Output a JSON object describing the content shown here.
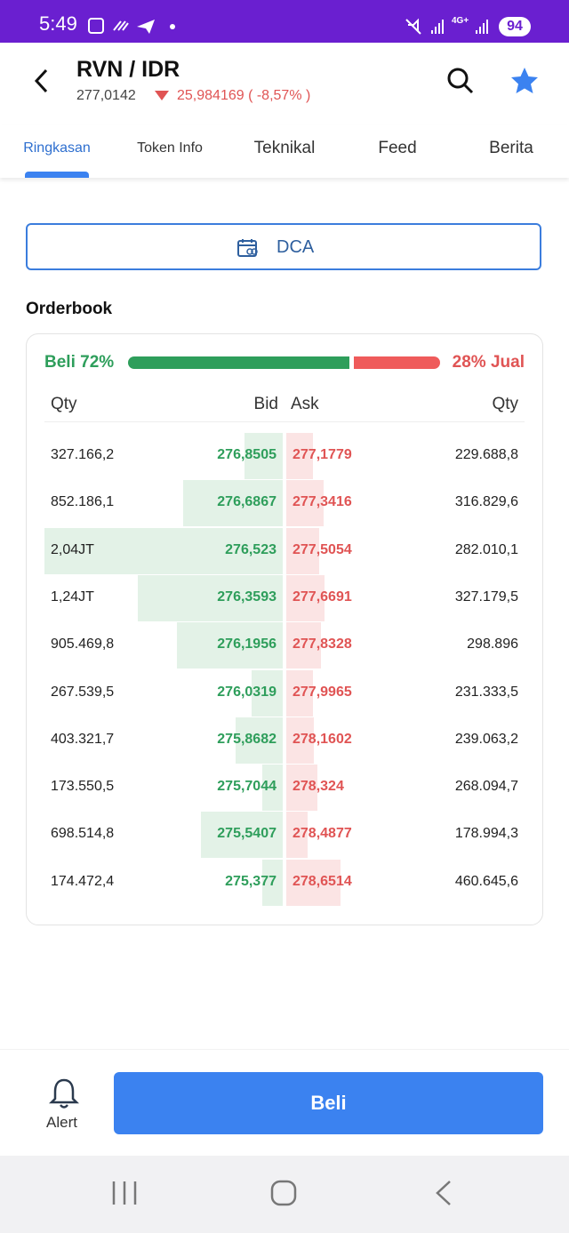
{
  "status_bar": {
    "time": "5:49",
    "network": "4G+",
    "battery": "94"
  },
  "header": {
    "pair": "RVN / IDR",
    "price": "277,0142",
    "change": "25,984169 ( -8,57% )"
  },
  "tabs": [
    "Ringkasan",
    "Token Info",
    "Teknikal",
    "Feed",
    "Berita"
  ],
  "dca_button": "DCA",
  "orderbook": {
    "title": "Orderbook",
    "buy_label": "Beli 72%",
    "buy_percent": 72,
    "sell_label": "28% Jual",
    "sell_percent": 28,
    "columns": [
      "Qty",
      "Bid",
      "Ask",
      "Qty"
    ],
    "rows": [
      {
        "bid_qty": "327.166,2",
        "bid": "276,8505",
        "ask": "277,1779",
        "ask_qty": "229.688,8"
      },
      {
        "bid_qty": "852.186,1",
        "bid": "276,6867",
        "ask": "277,3416",
        "ask_qty": "316.829,6"
      },
      {
        "bid_qty": "2,04JT",
        "bid": "276,523",
        "ask": "277,5054",
        "ask_qty": "282.010,1"
      },
      {
        "bid_qty": "1,24JT",
        "bid": "276,3593",
        "ask": "277,6691",
        "ask_qty": "327.179,5"
      },
      {
        "bid_qty": "905.469,8",
        "bid": "276,1956",
        "ask": "277,8328",
        "ask_qty": "298.896"
      },
      {
        "bid_qty": "267.539,5",
        "bid": "276,0319",
        "ask": "277,9965",
        "ask_qty": "231.333,5"
      },
      {
        "bid_qty": "403.321,7",
        "bid": "275,8682",
        "ask": "278,1602",
        "ask_qty": "239.063,2"
      },
      {
        "bid_qty": "173.550,5",
        "bid": "275,7044",
        "ask": "278,324",
        "ask_qty": "268.094,7"
      },
      {
        "bid_qty": "698.514,8",
        "bid": "275,5407",
        "ask": "278,4877",
        "ask_qty": "178.994,3"
      },
      {
        "bid_qty": "174.472,4",
        "bid": "275,377",
        "ask": "278,6514",
        "ask_qty": "460.645,6"
      }
    ]
  },
  "bottom_bar": {
    "alert": "Alert",
    "buy_button": "Beli"
  }
}
